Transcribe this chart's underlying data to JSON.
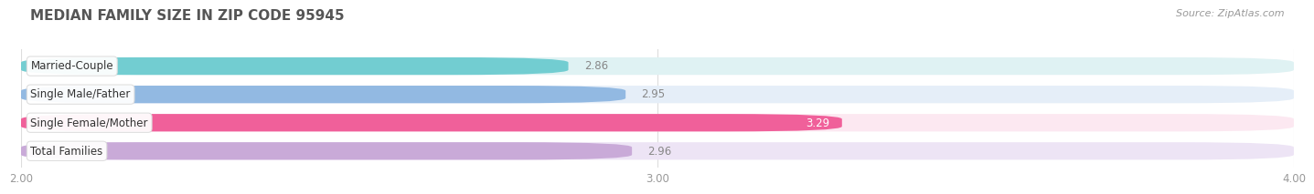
{
  "title": "MEDIAN FAMILY SIZE IN ZIP CODE 95945",
  "source": "Source: ZipAtlas.com",
  "categories": [
    "Married-Couple",
    "Single Male/Father",
    "Single Female/Mother",
    "Total Families"
  ],
  "values": [
    2.86,
    2.95,
    3.29,
    2.96
  ],
  "bar_colors": [
    "#72cdd1",
    "#92b9e2",
    "#f0609a",
    "#c9aad8"
  ],
  "bar_bg_colors": [
    "#dff2f3",
    "#e5eef8",
    "#fce8f1",
    "#ede4f5"
  ],
  "xlim_left": 2.0,
  "xlim_right": 4.0,
  "xticks": [
    2.0,
    3.0,
    4.0
  ],
  "xtick_labels": [
    "2.00",
    "3.00",
    "4.00"
  ],
  "bg_color": "#ffffff",
  "title_fontsize": 11,
  "source_fontsize": 8,
  "bar_height": 0.62,
  "bar_label_fontsize": 8.5,
  "value_label_fontsize": 8.5
}
